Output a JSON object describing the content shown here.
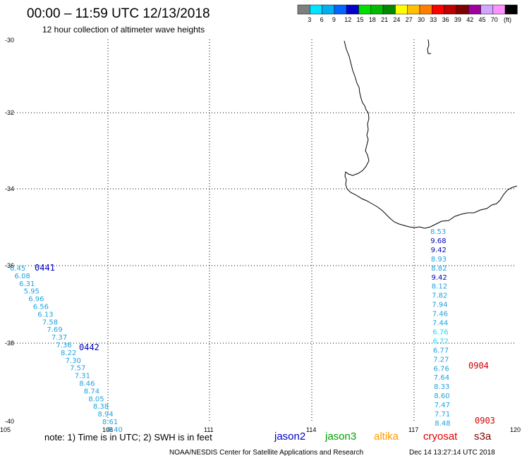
{
  "header": {
    "title": "00:00 – 11:59 UTC 12/13/2018",
    "subtitle": "12 hour collection of altimeter wave heights"
  },
  "legend": {
    "unit_label": "(ft)",
    "bins": [
      {
        "label": "",
        "color": "#7f7f7f"
      },
      {
        "label": "3",
        "color": "#00e5ff"
      },
      {
        "label": "6",
        "color": "#00b0f0"
      },
      {
        "label": "9",
        "color": "#0066ff"
      },
      {
        "label": "12",
        "color": "#0000d0"
      },
      {
        "label": "15",
        "color": "#00e000"
      },
      {
        "label": "18",
        "color": "#00bb00"
      },
      {
        "label": "21",
        "color": "#008800"
      },
      {
        "label": "24",
        "color": "#ffff00"
      },
      {
        "label": "27",
        "color": "#ffc000"
      },
      {
        "label": "30",
        "color": "#ff8000"
      },
      {
        "label": "33",
        "color": "#ff0000"
      },
      {
        "label": "36",
        "color": "#c00000"
      },
      {
        "label": "39",
        "color": "#800000"
      },
      {
        "label": "42",
        "color": "#a000a0"
      },
      {
        "label": "45",
        "color": "#d2a6ff"
      },
      {
        "label": "70",
        "color": "#ff90ff"
      },
      {
        "label": "",
        "color": "#000000"
      }
    ]
  },
  "axes": {
    "lat_labels": [
      "-30",
      "-32",
      "-34",
      "-36",
      "-38",
      "-40"
    ],
    "lon_labels": [
      "105",
      "108",
      "111",
      "114",
      "117",
      "120"
    ]
  },
  "track_west": {
    "color": "#1fa2e0",
    "values": [
      "6.45",
      "6.08",
      "6.31",
      "5.95",
      "6.96",
      "6.56",
      "6.13",
      "7.58",
      "7.69",
      "7.37",
      "7.36",
      "8.22",
      "7.30",
      "7.57",
      "7.31",
      "8.46",
      "8.74",
      "8.05",
      "8.38",
      "8.94",
      "8.61",
      "8.40"
    ]
  },
  "track_east": {
    "values": [
      {
        "v": "8.53",
        "c": "#1fa2e0"
      },
      {
        "v": "9.68",
        "c": "#0000b0"
      },
      {
        "v": "9.42",
        "c": "#0000b0"
      },
      {
        "v": "8.93",
        "c": "#1fa2e0"
      },
      {
        "v": "8.82",
        "c": "#1fa2e0"
      },
      {
        "v": "9.42",
        "c": "#0000b0"
      },
      {
        "v": "8.12",
        "c": "#1fa2e0"
      },
      {
        "v": "7.82",
        "c": "#1fa2e0"
      },
      {
        "v": "7.94",
        "c": "#1fa2e0"
      },
      {
        "v": "7.46",
        "c": "#1fa2e0"
      },
      {
        "v": "7.44",
        "c": "#1fa2e0"
      },
      {
        "v": "6.76",
        "c": "#19d8ef"
      },
      {
        "v": "6.72",
        "c": "#19d8ef"
      },
      {
        "v": "6.77",
        "c": "#1fa2e0"
      },
      {
        "v": "7.27",
        "c": "#1fa2e0"
      },
      {
        "v": "6.76",
        "c": "#1fa2e0"
      },
      {
        "v": "7.64",
        "c": "#1fa2e0"
      },
      {
        "v": "8.33",
        "c": "#1fa2e0"
      },
      {
        "v": "8.60",
        "c": "#1fa2e0"
      },
      {
        "v": "7.47",
        "c": "#1fa2e0"
      },
      {
        "v": "7.71",
        "c": "#1fa2e0"
      },
      {
        "v": "8.48",
        "c": "#1fa2e0"
      }
    ]
  },
  "time_labels": [
    {
      "text": "0441",
      "color": "#0000c0"
    },
    {
      "text": "0442",
      "color": "#0000c0"
    },
    {
      "text": "0904",
      "color": "#d40000"
    },
    {
      "text": "0903",
      "color": "#d40000"
    }
  ],
  "footer": {
    "note": "note:  1) Time is in UTC; 2) SWH is in feet",
    "satellites": [
      {
        "name": "jason2",
        "color": "#0000c8"
      },
      {
        "name": "jason3",
        "color": "#00a000"
      },
      {
        "name": "altika",
        "color": "#ff9900"
      },
      {
        "name": "cryosat",
        "color": "#e00000"
      },
      {
        "name": "s3a",
        "color": "#800000"
      }
    ],
    "credit": "NOAA/NESDIS Center for Satellite Applications and Research",
    "timestamp": "Dec 14 13:27:14 UTC 2018"
  }
}
